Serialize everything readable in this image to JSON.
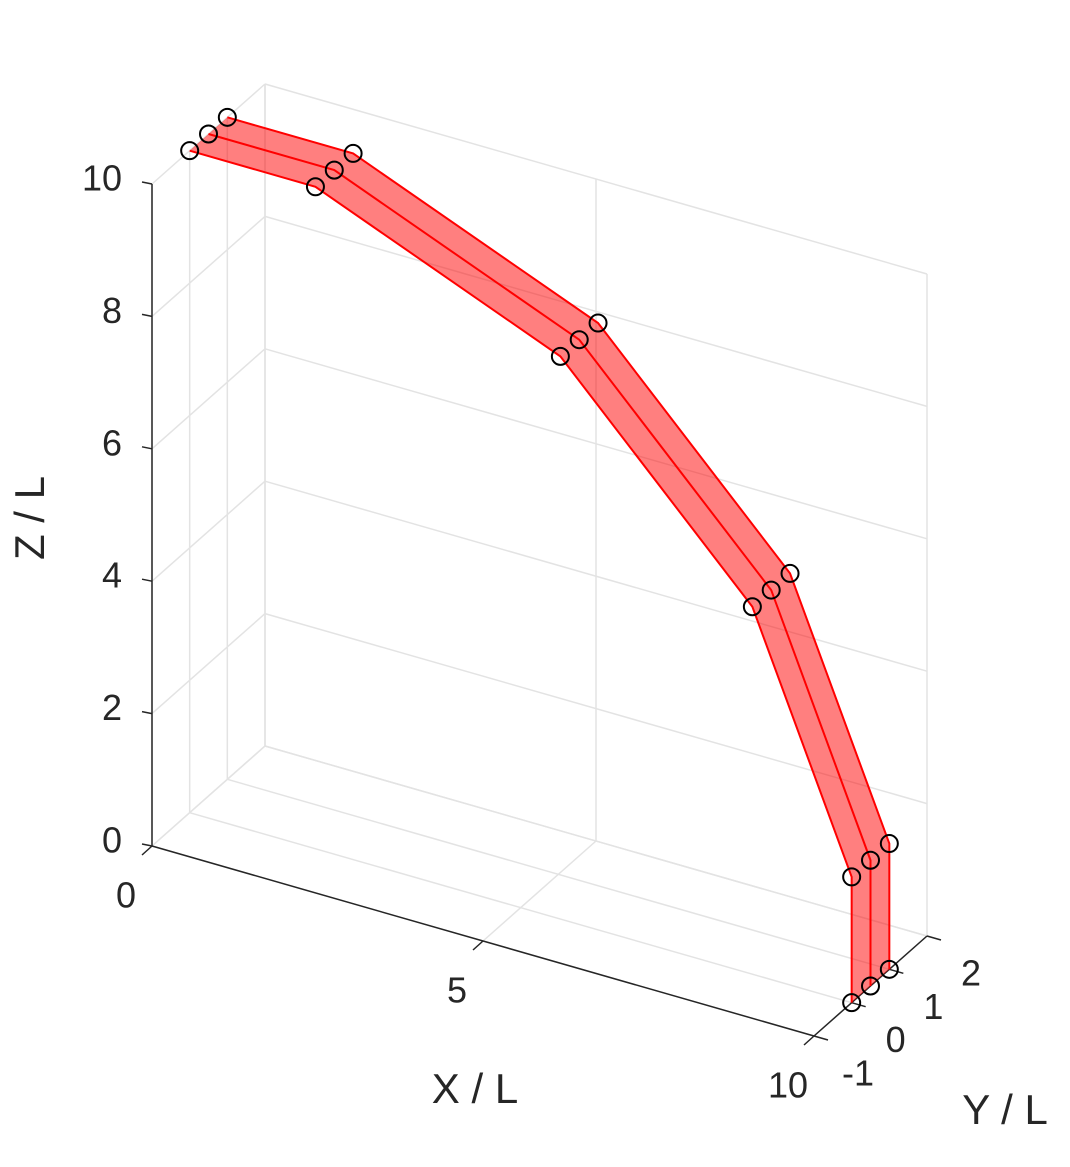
{
  "chart_data": {
    "type": "line3d",
    "xlabel": "X / L",
    "ylabel": "Y / L",
    "zlabel": "Z / L",
    "xlim": [
      0,
      10
    ],
    "ylim": [
      -1,
      2
    ],
    "zlim": [
      0,
      10
    ],
    "xticks": [
      0,
      5,
      10
    ],
    "yticks": [
      -1,
      0,
      1,
      2
    ],
    "zticks": [
      0,
      2,
      4,
      6,
      8,
      10
    ],
    "grid": true,
    "line_color": "#ff0000",
    "fill_color": "#ff0000",
    "fill_alpha": 0.5,
    "marker_color": "#000000",
    "series": [
      {
        "x": [
          10,
          10,
          8.5,
          5.6,
          1.9,
          0
        ],
        "y": [
          0,
          0,
          0,
          0,
          0,
          0
        ],
        "z": [
          0,
          1.9,
          5.55,
          8.5,
          10,
          10
        ]
      },
      {
        "x": [
          10,
          10,
          8.5,
          5.6,
          1.9,
          0
        ],
        "y": [
          0.5,
          0.5,
          0.5,
          0.5,
          0.5,
          0.5
        ],
        "z": [
          0,
          1.9,
          5.55,
          8.5,
          10,
          10
        ]
      },
      {
        "x": [
          10,
          10,
          8.5,
          5.6,
          1.9,
          0
        ],
        "y": [
          1,
          1,
          1,
          1,
          1,
          1
        ],
        "z": [
          0,
          1.9,
          5.55,
          8.5,
          10,
          10
        ]
      }
    ]
  }
}
